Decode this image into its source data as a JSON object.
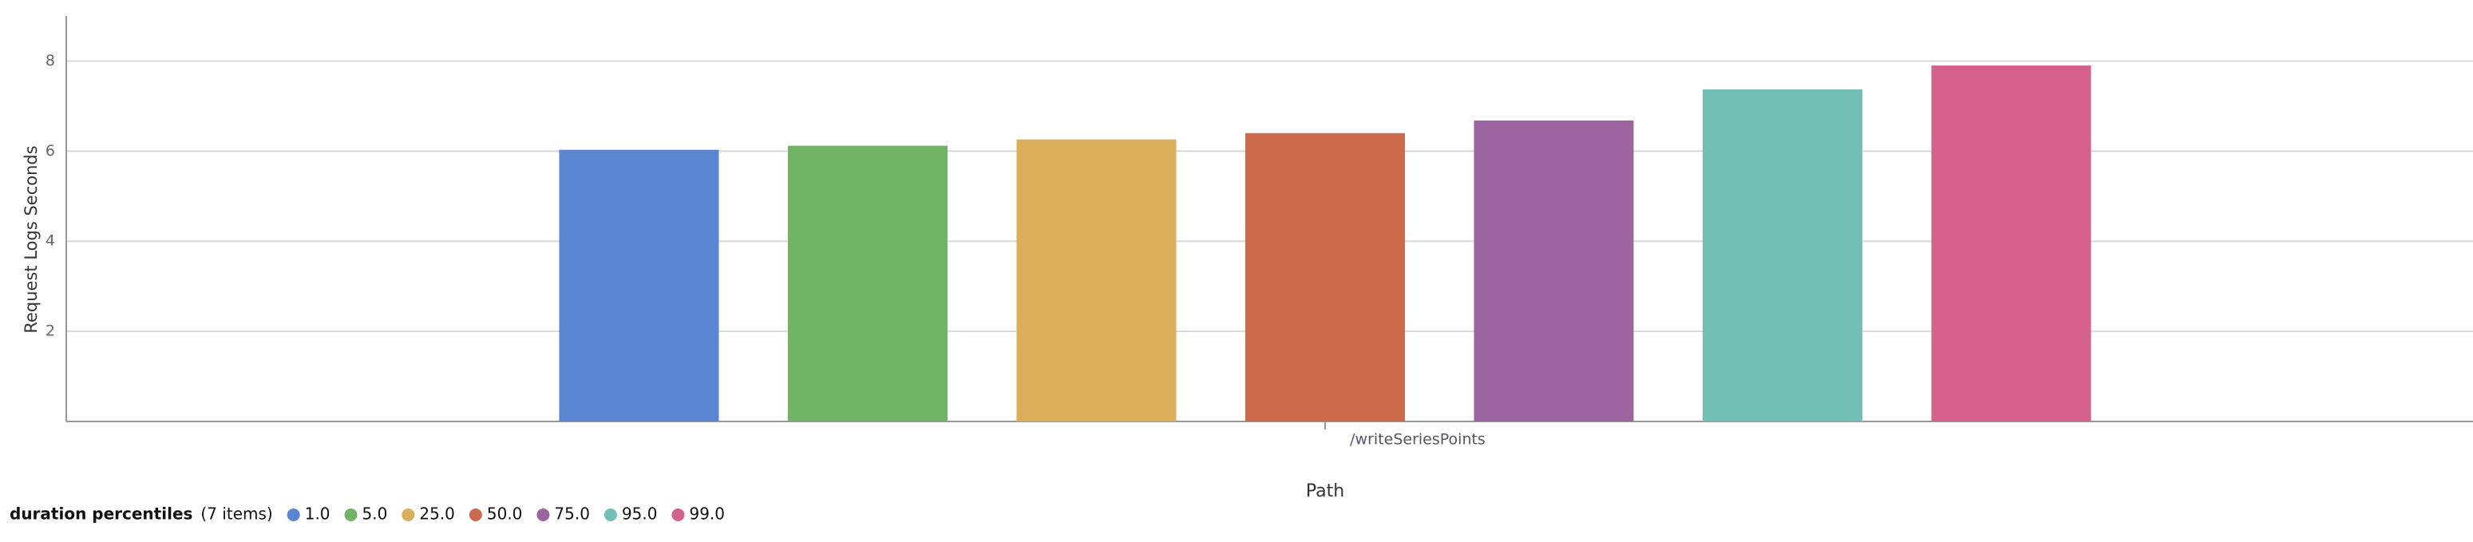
{
  "chart_data": {
    "type": "bar",
    "y_label": "Request Logs Seconds",
    "x_label": "Path",
    "categories": [
      "/writeSeriesPoints"
    ],
    "legend_title": "duration percentiles",
    "legend_count": "(7 items)",
    "series": [
      {
        "name": "1.0",
        "color": "#5b84d2",
        "values": [
          6.03
        ]
      },
      {
        "name": "5.0",
        "color": "#72b466",
        "values": [
          6.12
        ]
      },
      {
        "name": "25.0",
        "color": "#dbae5c",
        "values": [
          6.26
        ]
      },
      {
        "name": "50.0",
        "color": "#cc6a4e",
        "values": [
          6.4
        ]
      },
      {
        "name": "75.0",
        "color": "#9c65a0",
        "values": [
          6.68
        ]
      },
      {
        "name": "95.0",
        "color": "#72c0b5",
        "values": [
          7.37
        ]
      },
      {
        "name": "99.0",
        "color": "#d6628b",
        "values": [
          7.9
        ]
      }
    ],
    "ylim": [
      0,
      9
    ],
    "yticks": [
      2,
      4,
      6,
      8
    ],
    "grid": true
  }
}
